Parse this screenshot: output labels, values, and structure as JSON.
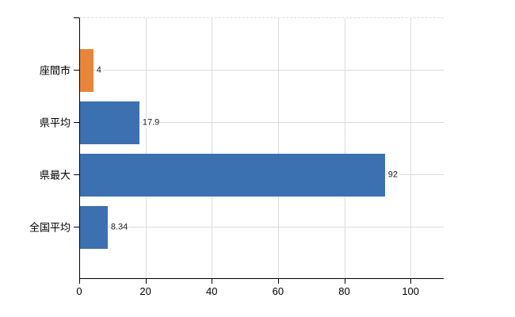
{
  "chart_data": {
    "type": "bar",
    "orientation": "horizontal",
    "title": "",
    "xlabel": "",
    "ylabel": "",
    "categories": [
      "座間市",
      "県平均",
      "県最大",
      "全国平均"
    ],
    "values": [
      4,
      17.9,
      92,
      8.34
    ],
    "value_labels": [
      "4",
      "17.9",
      "92",
      "8.34"
    ],
    "series_colors": [
      "#e8853a",
      "#3b71b1",
      "#3b71b1",
      "#3b71b1"
    ],
    "x_ticks": [
      0,
      20,
      40,
      60,
      80,
      100
    ],
    "x_tick_labels": [
      "0",
      "20",
      "40",
      "60",
      "80",
      "100"
    ],
    "xlim": [
      0,
      110
    ],
    "grid": true,
    "legend": false
  },
  "colors": {
    "highlight_bar": "#e8853a",
    "default_bar": "#3b71b1",
    "gridline": "#d9ddd9",
    "axis": "#000000",
    "background": "#ffffff"
  }
}
